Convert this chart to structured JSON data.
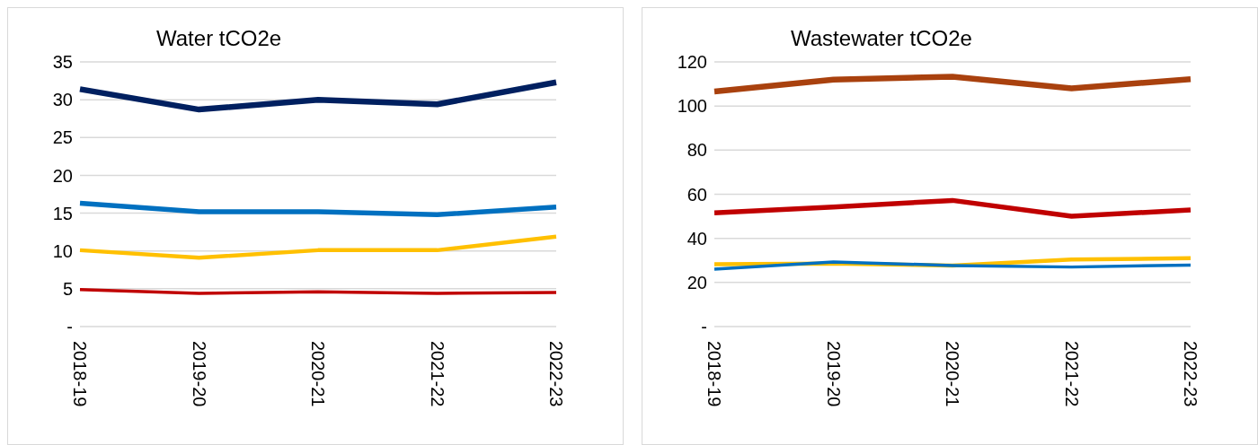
{
  "chart_data": [
    {
      "type": "line",
      "title": "Water  tCO2e",
      "categories": [
        "2018-19",
        "2019-20",
        "2020-21",
        "2021-22",
        "2022-23"
      ],
      "series": [
        {
          "color": "#002060",
          "values": [
            31.4,
            28.7,
            30.0,
            29.4,
            32.3
          ]
        },
        {
          "color": "#0070c0",
          "values": [
            16.3,
            15.2,
            15.2,
            14.8,
            15.8
          ]
        },
        {
          "color": "#ffc000",
          "values": [
            10.1,
            9.1,
            10.1,
            10.1,
            11.9
          ]
        },
        {
          "color": "#c00000",
          "values": [
            4.9,
            4.4,
            4.6,
            4.4,
            4.5
          ]
        }
      ],
      "ylim": [
        0,
        35
      ],
      "yticks": [
        {
          "value": 0,
          "label": "-"
        },
        5,
        10,
        15,
        20,
        25,
        30,
        35
      ],
      "grid": "y",
      "legend": false,
      "marker": "none",
      "line_style": "solid"
    },
    {
      "type": "line",
      "title": "Wastewater  tCO2e",
      "categories": [
        "2018-19",
        "2019-20",
        "2020-21",
        "2021-22",
        "2022-23"
      ],
      "series": [
        {
          "color": "#a9410e",
          "values": [
            106.6,
            112,
            113.3,
            108,
            112.2
          ]
        },
        {
          "color": "#c00000",
          "values": [
            51.6,
            54.2,
            57.2,
            50,
            52.9
          ]
        },
        {
          "color": "#ffc000",
          "values": [
            28.3,
            28.6,
            27.7,
            30.4,
            31
          ]
        },
        {
          "color": "#0070c0",
          "values": [
            26,
            29.3,
            27.7,
            27,
            27.9
          ]
        }
      ],
      "ylim": [
        0,
        120
      ],
      "yticks": [
        {
          "value": 0,
          "label": "-"
        },
        20,
        40,
        60,
        80,
        100,
        120
      ],
      "grid": "y",
      "legend": false,
      "marker": "none",
      "line_style": "solid"
    }
  ]
}
